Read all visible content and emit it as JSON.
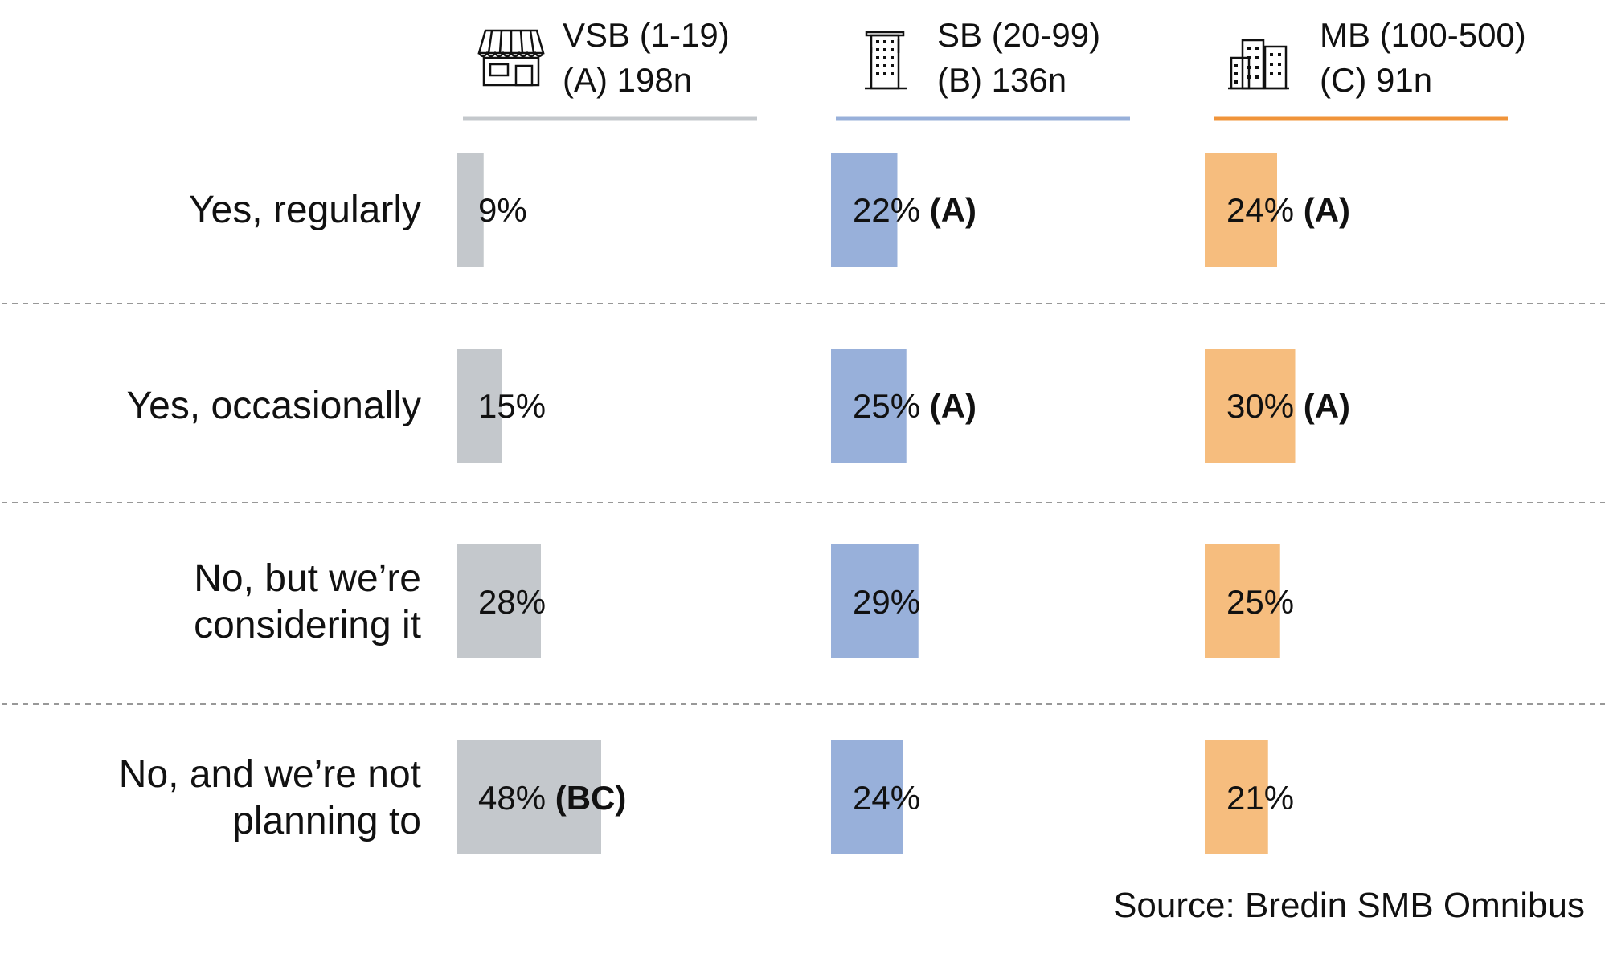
{
  "chart_data": {
    "type": "bar",
    "orientation": "horizontal",
    "segments": [
      {
        "icon": "storefront-icon",
        "color": "#c4c8cc",
        "underline_color": "#c4c8cc",
        "title_lines": [
          "VSB (1-19)",
          "(A) 198n"
        ]
      },
      {
        "icon": "office-tower-icon",
        "color": "#98b0da",
        "underline_color": "#98b0da",
        "title_lines": [
          "SB (20-99)",
          "(B) 136n"
        ]
      },
      {
        "icon": "city-buildings-icon",
        "color": "#f6bd7e",
        "underline_color": "#f0943a",
        "title_lines": [
          "MB (100-500)",
          "(C) 91n"
        ]
      }
    ],
    "categories": [
      {
        "label_lines": [
          "Yes, regularly"
        ]
      },
      {
        "label_lines": [
          "Yes, occasionally"
        ]
      },
      {
        "label_lines": [
          "No, but we’re",
          "considering it"
        ]
      },
      {
        "label_lines": [
          "No, and we’re not",
          "planning to"
        ]
      }
    ],
    "series": [
      {
        "name": "VSB (1-19) (A) 198n",
        "values": [
          9,
          15,
          28,
          48
        ],
        "sig": [
          "",
          "",
          "",
          "(BC)"
        ]
      },
      {
        "name": "SB (20-99) (B) 136n",
        "values": [
          22,
          25,
          29,
          24
        ],
        "sig": [
          "(A)",
          "(A)",
          "",
          ""
        ]
      },
      {
        "name": "MB (100-500) (C) 91n",
        "values": [
          24,
          30,
          25,
          21
        ],
        "sig": [
          "(A)",
          "(A)",
          "",
          ""
        ]
      }
    ],
    "value_suffix": "%",
    "grid": false,
    "row_separators": "dashed"
  },
  "source": "Source: Bredin SMB Omnibus"
}
